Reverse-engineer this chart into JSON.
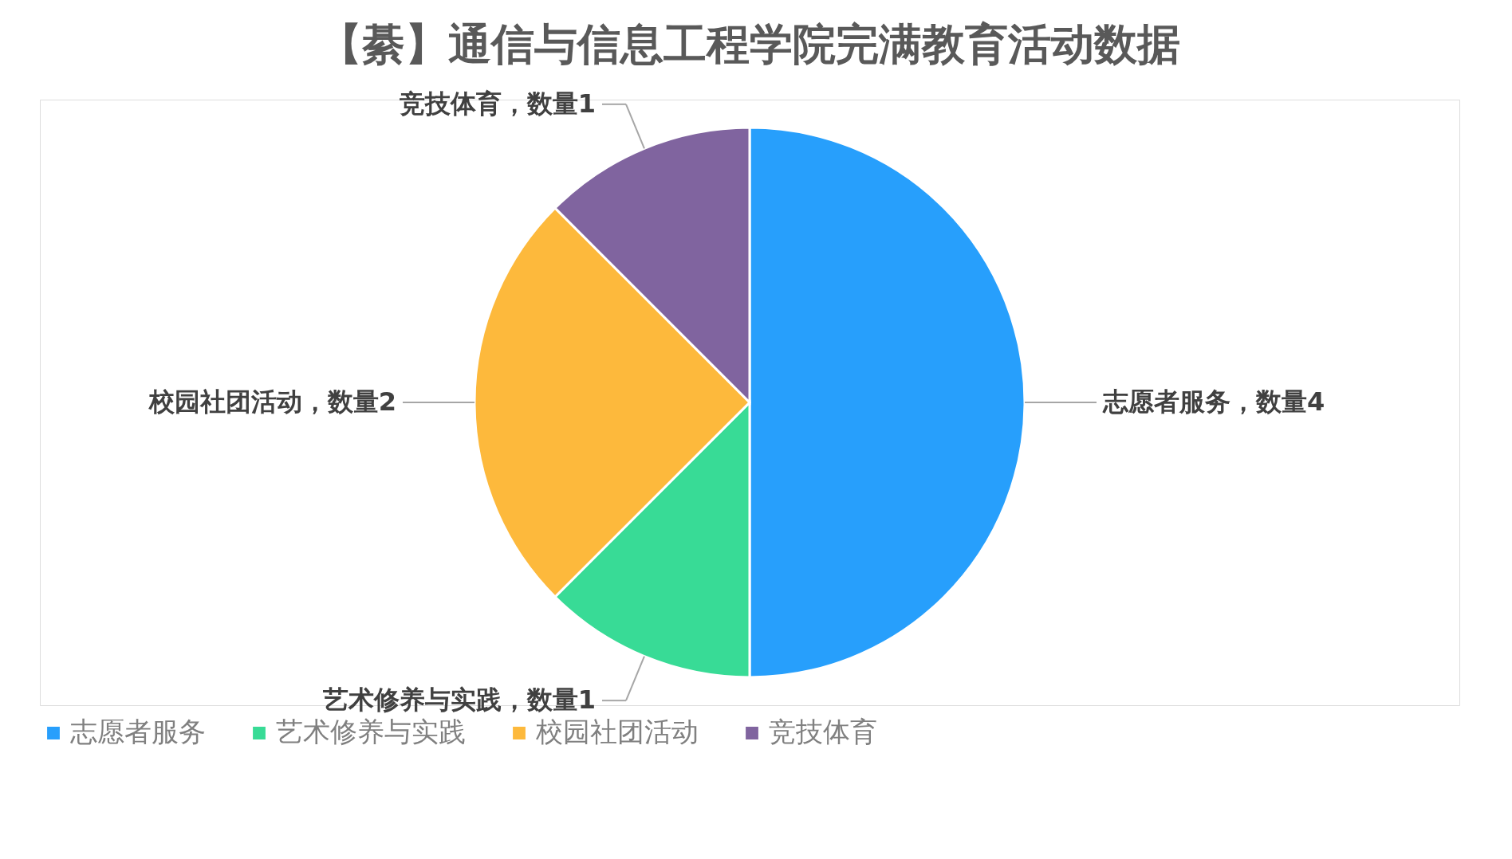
{
  "chart_data": {
    "type": "pie",
    "title": "【綦】通信与信息工程学院完满教育活动数据",
    "categories": [
      "志愿者服务",
      "艺术修养与实践",
      "校园社团活动",
      "竞技体育"
    ],
    "values": [
      4,
      1,
      2,
      1
    ],
    "colors": [
      "#279ffc",
      "#38db96",
      "#fdb93c",
      "#80649f"
    ],
    "value_labels": [
      "志愿者服务，数量4",
      "艺术修养与实践，数量1",
      "校园社团活动，数量2",
      "竞技体育，数量1"
    ],
    "legend": "bottom"
  }
}
